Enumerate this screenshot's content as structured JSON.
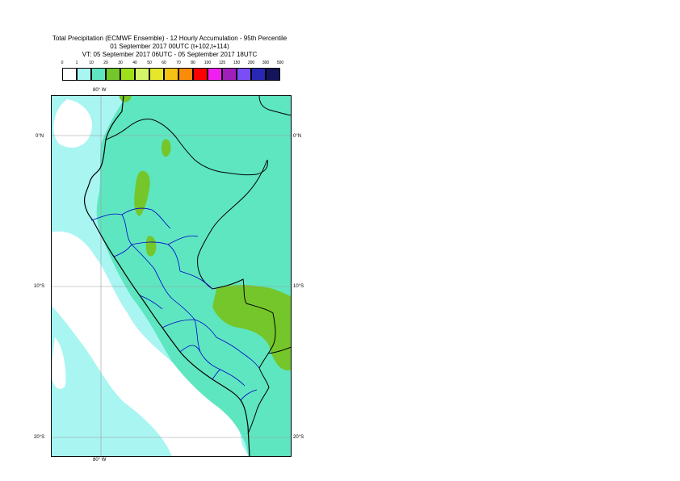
{
  "title": {
    "line1": "Total Precipitation (ECMWF Ensemble) - 12 Hourly Accumulation - 95th Percentile",
    "line2": "01 September 2017 00UTC (t+102,t+114)",
    "line3": "VT: 05 September 2017 06UTC - 05 September 2017 18UTC"
  },
  "legend": {
    "ticks": [
      "0",
      "1",
      "10",
      "20",
      "30",
      "40",
      "50",
      "60",
      "70",
      "80",
      "100",
      "125",
      "150",
      "200",
      "300",
      "500"
    ],
    "colors": [
      "#ffffff",
      "#a8f5f2",
      "#5ee6c0",
      "#74c62a",
      "#9ee01a",
      "#d4f567",
      "#e6e62a",
      "#f5c214",
      "#fa8c0a",
      "#ff0000",
      "#f01ef0",
      "#a01eb9",
      "#7a4df5",
      "#2828b4",
      "#14145a"
    ]
  },
  "axes": {
    "lon_top": "80° W",
    "lon_bottom": "80° W",
    "lat_left": [
      "0°N",
      "10°S",
      "20°S"
    ],
    "lat_right": [
      "0°N",
      "10°S",
      "20°S"
    ]
  },
  "map": {
    "region": "Peru",
    "lon_range": [
      -83.5,
      -67.5
    ],
    "lat_range": [
      -21.5,
      2.5
    ],
    "ocean_color": "#a8f5f2",
    "land_color": "#5ee6c0",
    "heavy_color": "#74c62a",
    "border_color": "#000000",
    "admin_color": "#0000c8"
  }
}
